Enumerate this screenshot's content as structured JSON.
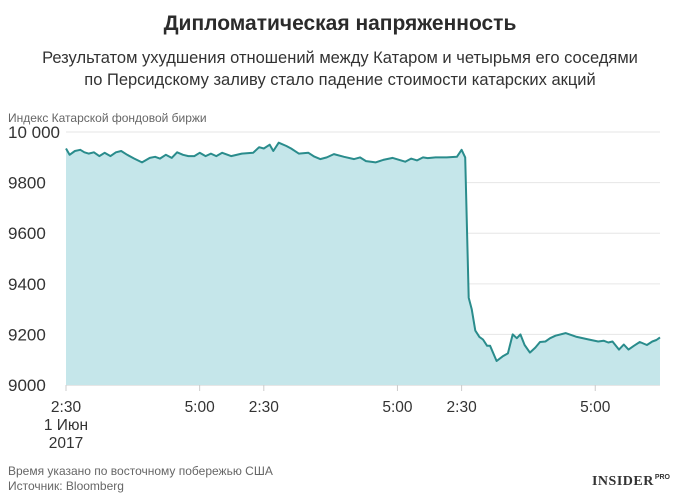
{
  "title": "Дипломатическая напряженность",
  "subtitle_line1": "Результатом ухудшения отношений между Катаром и четырьмя его соседями",
  "subtitle_line2": "по Персидскому заливу стало падение стоимости катарских акций",
  "footnote": "Время указано по восточному побережью США",
  "source": "Источник: Bloomberg",
  "logo": {
    "main": "INSIDER",
    "sub": "PRO"
  },
  "colors": {
    "line": "#2a8c8c",
    "fill": "#c5e6ea",
    "grid": "#e6e6e6",
    "axis": "#cccccc",
    "text": "#333333"
  },
  "chart_data": {
    "type": "area",
    "ylabel": "Индекс Катарской фондовой биржи",
    "ylim": [
      9000,
      10020
    ],
    "yticks": [
      9000,
      9200,
      9400,
      9600,
      9800,
      10000
    ],
    "ytick_labels": [
      "9000",
      "9200",
      "9400",
      "9600",
      "9800",
      "10 000"
    ],
    "xlim": [
      0,
      100
    ],
    "xticks": [
      {
        "x": 0,
        "label": [
          "2:30",
          "1 Июн",
          "2017"
        ]
      },
      {
        "x": 22.5,
        "label": [
          "5:00"
        ]
      },
      {
        "x": 33.3,
        "label": [
          "2:30"
        ]
      },
      {
        "x": 55.8,
        "label": [
          "5:00"
        ]
      },
      {
        "x": 66.6,
        "label": [
          "2:30"
        ]
      },
      {
        "x": 89.1,
        "label": [
          "5:00"
        ]
      }
    ],
    "grid": true,
    "legend": "none",
    "series": [
      {
        "x": [
          0,
          0.6,
          1.5,
          2.4,
          3.1,
          3.8,
          4.7,
          5.6,
          6.5,
          7.5,
          8.4,
          9.3,
          10.3,
          11.5,
          12.8,
          14.1,
          15.0,
          15.8,
          16.8,
          17.8,
          18.7,
          19.7,
          20.6,
          21.6,
          22.5,
          23.5,
          24.4,
          25.3,
          26.3,
          27.8,
          29.6,
          31.5,
          32.5,
          33.3,
          34.3,
          34.9,
          35.8,
          37.1,
          37.9,
          39.2,
          40.8,
          41.8,
          42.8,
          43.9,
          45.1,
          46.8,
          48.5,
          49.5,
          50.5,
          51.5,
          52.1,
          53.4,
          55.0,
          57.1,
          58.1,
          59.1,
          60.1,
          60.9,
          62.2,
          64.1,
          65.8,
          66.6,
          67.2,
          67.8,
          68.3,
          68.9,
          69.6,
          70.2,
          70.9,
          71.4,
          72.5,
          73.5,
          74.4,
          75.2,
          75.9,
          76.5,
          77.2,
          78.1,
          79.0,
          79.8,
          80.7,
          81.5,
          82.4,
          84.1,
          86.0,
          88.0,
          89.6,
          90.5,
          91.3,
          92.0,
          93.1,
          93.9,
          94.7,
          95.6,
          96.6,
          97.8,
          98.7,
          99.4,
          100
        ],
        "y": [
          9935,
          9910,
          9925,
          9930,
          9920,
          9915,
          9920,
          9905,
          9918,
          9905,
          9920,
          9925,
          9910,
          9895,
          9880,
          9898,
          9902,
          9895,
          9910,
          9898,
          9920,
          9910,
          9905,
          9905,
          9918,
          9905,
          9915,
          9905,
          9918,
          9905,
          9915,
          9918,
          9940,
          9935,
          9950,
          9925,
          9958,
          9945,
          9935,
          9915,
          9918,
          9903,
          9893,
          9900,
          9913,
          9902,
          9893,
          9900,
          9885,
          9882,
          9880,
          9890,
          9898,
          9883,
          9895,
          9888,
          9900,
          9897,
          9900,
          9900,
          9902,
          9930,
          9900,
          9345,
          9300,
          9215,
          9190,
          9180,
          9155,
          9155,
          9095,
          9113,
          9125,
          9200,
          9185,
          9200,
          9158,
          9128,
          9148,
          9170,
          9172,
          9185,
          9195,
          9205,
          9190,
          9180,
          9172,
          9175,
          9168,
          9172,
          9140,
          9160,
          9140,
          9155,
          9170,
          9158,
          9172,
          9178,
          9188
        ]
      }
    ]
  }
}
